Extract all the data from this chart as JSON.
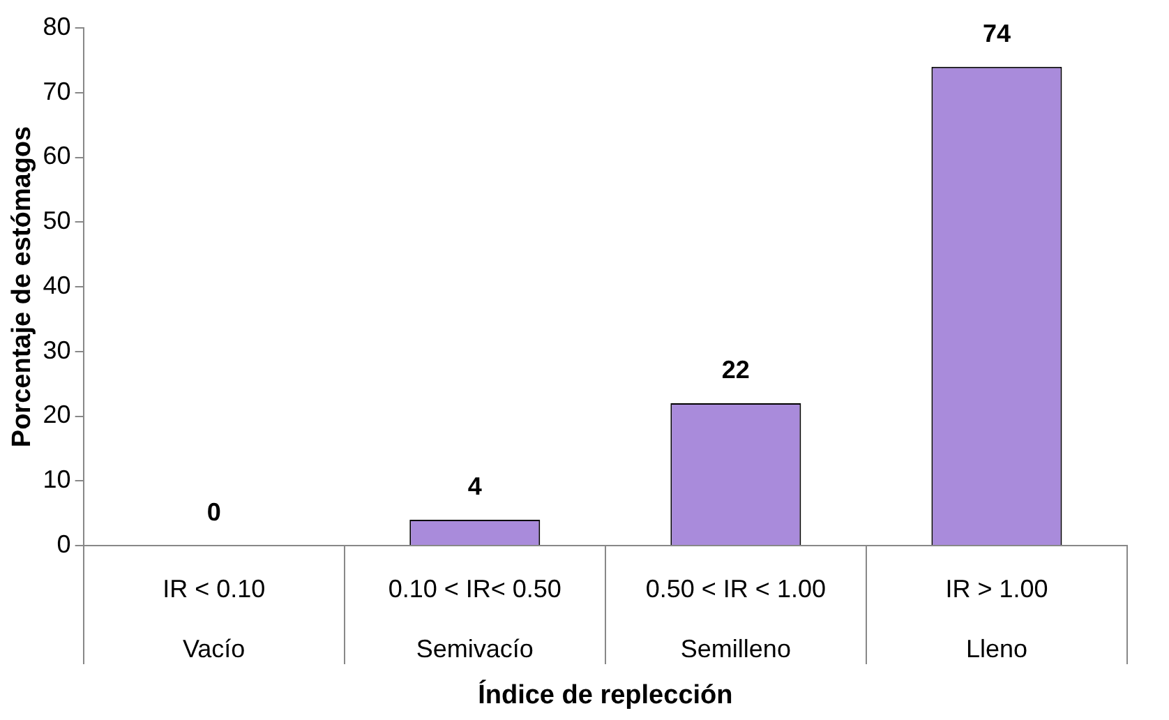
{
  "chart_data": {
    "type": "bar",
    "xlabel": "Índice de replección",
    "ylabel": "Porcentaje de estómagos",
    "categories": [
      "IR < 0.10\nVacío",
      "0.10 < IR< 0.50\nSemivacío",
      "0.50 < IR < 1.00\nSemilleno",
      "IR > 1.00\nLleno"
    ],
    "values": [
      0,
      4,
      22,
      74
    ],
    "color": "#a98bdb",
    "ylim": [
      0,
      80
    ],
    "yticks": [
      0,
      10,
      20,
      30,
      40,
      50,
      60,
      70,
      80
    ],
    "grid": false,
    "legend": false,
    "data_labels": true
  }
}
